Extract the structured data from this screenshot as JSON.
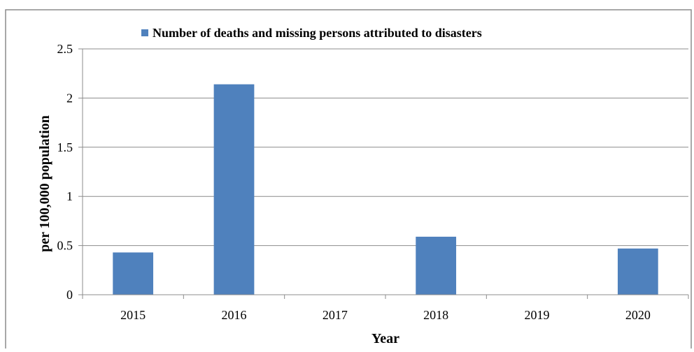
{
  "chart_data": {
    "type": "bar",
    "categories": [
      "2015",
      "2016",
      "2017",
      "2018",
      "2019",
      "2020"
    ],
    "series": [
      {
        "name": "Number of deaths and missing persons attributed to disasters",
        "values": [
          0.43,
          2.14,
          0,
          0.59,
          0,
          0.47
        ],
        "color": "#4f81bd"
      }
    ],
    "xlabel": "Year",
    "ylabel": "per 100,000 population",
    "ylim": [
      0,
      2.5
    ],
    "yticks": [
      "0",
      "0.5",
      "1",
      "1.5",
      "2",
      "2.5"
    ],
    "grid": true,
    "legend_position": "top"
  }
}
